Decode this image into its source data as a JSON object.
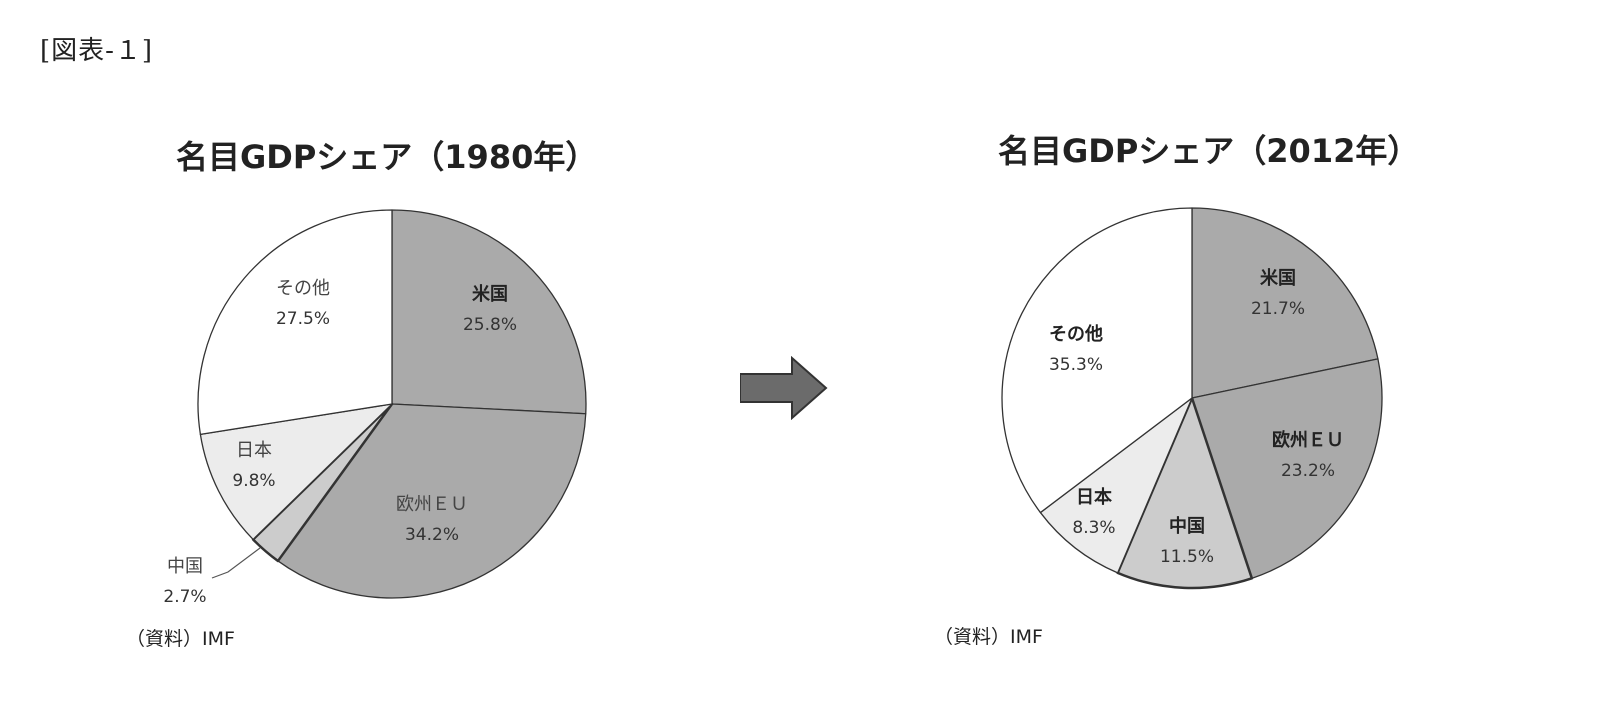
{
  "figure_label": "[図表‐１]",
  "arrow_icon": "right-arrow-icon",
  "chart_data": [
    {
      "type": "pie",
      "title": "名目GDPシェア（1980年）",
      "source": "（資料）IMF",
      "slices": [
        {
          "label": "米国",
          "value": 25.8,
          "value_label": "25.8%",
          "color": "#aaaaaa"
        },
        {
          "label": "欧州ＥＵ",
          "value": 34.2,
          "value_label": "34.2%",
          "color": "#aaaaaa"
        },
        {
          "label": "中国",
          "value": 2.7,
          "value_label": "2.7%",
          "color": "#cccccc"
        },
        {
          "label": "日本",
          "value": 9.8,
          "value_label": "9.8%",
          "color": "#ececec"
        },
        {
          "label": "その他",
          "value": 27.5,
          "value_label": "27.5%",
          "color": "#ffffff"
        }
      ]
    },
    {
      "type": "pie",
      "title": "名目GDPシェア（2012年）",
      "source": "（資料）IMF",
      "slices": [
        {
          "label": "米国",
          "value": 21.7,
          "value_label": "21.7%",
          "color": "#aaaaaa"
        },
        {
          "label": "欧州ＥＵ",
          "value": 23.2,
          "value_label": "23.2%",
          "color": "#aaaaaa"
        },
        {
          "label": "中国",
          "value": 11.5,
          "value_label": "11.5%",
          "color": "#cccccc"
        },
        {
          "label": "日本",
          "value": 8.3,
          "value_label": "8.3%",
          "color": "#ececec"
        },
        {
          "label": "その他",
          "value": 35.3,
          "value_label": "35.3%",
          "color": "#ffffff"
        }
      ]
    }
  ]
}
